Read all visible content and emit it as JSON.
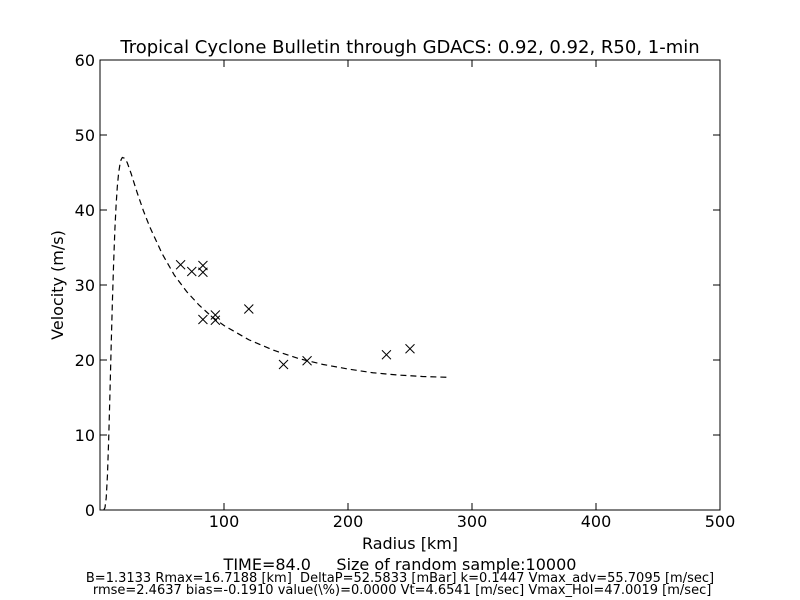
{
  "chart_data": {
    "type": "scatter",
    "title": "Tropical Cyclone Bulletin through GDACS: 0.92, 0.92, R50, 1-min",
    "xlabel": "Radius [km]",
    "ylabel": "Velocity (m/s)",
    "xlim": [
      0,
      500
    ],
    "ylim": [
      0,
      60
    ],
    "xticks": [
      100,
      200,
      300,
      400,
      500
    ],
    "xtick_labels": [
      "100",
      "200",
      "300",
      "400",
      "500"
    ],
    "yticks": [
      0,
      10,
      20,
      30,
      40,
      50,
      60
    ],
    "ytick_labels": [
      "0",
      "10",
      "20",
      "30",
      "40",
      "50",
      "60"
    ],
    "grid": false,
    "series": [
      {
        "marker": "x",
        "color": "#000000",
        "x": [
          65,
          74,
          83,
          83,
          83,
          93,
          93,
          120,
          148,
          167,
          231,
          250
        ],
        "y": [
          32.7,
          31.8,
          32.6,
          31.7,
          25.4,
          26.0,
          25.3,
          26.8,
          19.4,
          19.9,
          20.7,
          21.5
        ]
      },
      {
        "line_style": "dashed",
        "color": "#000000",
        "x": [
          3,
          4,
          5,
          6,
          7,
          8,
          9,
          10,
          11,
          12,
          13,
          14,
          15,
          16,
          17,
          18,
          20,
          22,
          25,
          30,
          35,
          40,
          50,
          60,
          70,
          80,
          90,
          100,
          120,
          140,
          160,
          180,
          200,
          220,
          240,
          260,
          280
        ],
        "y": [
          0.0,
          0.3,
          1.6,
          4.6,
          9.4,
          15.4,
          21.8,
          27.8,
          33.0,
          37.4,
          40.7,
          43.2,
          44.9,
          46.0,
          46.7,
          47.0,
          46.9,
          46.3,
          44.9,
          42.3,
          39.9,
          37.8,
          34.2,
          31.3,
          29.1,
          27.3,
          25.8,
          24.6,
          22.7,
          21.3,
          20.2,
          19.4,
          18.8,
          18.3,
          18.0,
          17.8,
          17.7
        ]
      }
    ],
    "footer": {
      "line1": "TIME=84.0     Size of random sample:10000",
      "line2": "B=1.3133 Rmax=16.7188 [km]  DeltaP=52.5833 [mBar] k=0.1447 Vmax_adv=55.7095 [m/sec]",
      "line3": " rmse=2.4637 bias=-0.1910 value(\\%)=0.0000 Vt=4.6541 [m/sec] Vmax_Hol=47.0019 [m/sec]"
    }
  }
}
